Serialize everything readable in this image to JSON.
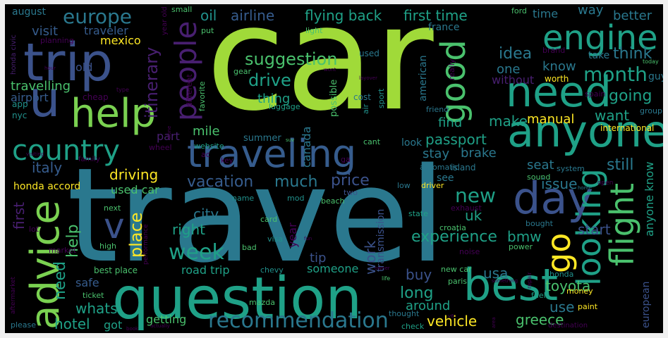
{
  "words": {
    "car": "car",
    "travel": "travel",
    "question": "question",
    "help": "help",
    "trip": "trip",
    "u": "u",
    "need": "need",
    "anyone": "anyone",
    "best": "best",
    "engine": "engine",
    "traveling": "traveling",
    "advice": "advice",
    "day": "day",
    "country": "country",
    "people": "people",
    "good": "good",
    "europe": "europe",
    "looking": "looking",
    "flight": "flight",
    "recommendation": "recommendation",
    "go": "go",
    "month": "month",
    "week": "week",
    "suggestion": "suggestion",
    "first_time": "first time",
    "flying_back": "flying back",
    "airline": "airline",
    "oil": "oil",
    "time": "time",
    "way": "way",
    "better": "better",
    "visit": "visit",
    "traveler": "traveler",
    "mexico": "mexico",
    "august": "august",
    "itinerary": "itinerary",
    "idea": "idea",
    "one": "one",
    "know": "know",
    "think": "think",
    "travelling": "travelling",
    "airport": "airport",
    "old": "old",
    "drive": "drive",
    "thing": "thing",
    "without": "without",
    "going": "going",
    "make": "make",
    "manual": "manual",
    "want": "want",
    "find": "find",
    "passport": "passport",
    "mile": "mile",
    "part": "part",
    "italy": "italy",
    "driving": "driving",
    "canada": "canada",
    "stay": "stay",
    "brake": "brake",
    "seat": "seat",
    "still": "still",
    "issue": "issue",
    "vacation": "vacation",
    "much": "much",
    "price": "price",
    "new": "new",
    "uk": "uk",
    "city": "city",
    "right": "right",
    "place": "place",
    "start": "start",
    "experience": "experience",
    "bmw": "bmw",
    "whats": "whats",
    "hotel": "hotel",
    "vehicle": "vehicle",
    "usa": "usa",
    "toyota": "toyota",
    "greece": "greece",
    "use": "use",
    "long": "long",
    "around": "around",
    "buy": "buy",
    "work": "work",
    "year": "year",
    "tip": "tip",
    "someone": "someone",
    "road_trip": "road trip",
    "getting": "getting",
    "got": "got",
    "safe": "safe",
    "need2": "need",
    "help2": "help",
    "first": "first",
    "v": "v",
    "used_car": "used car",
    "honda_accord": "honda accord",
    "summer": "summer",
    "website": "website",
    "look": "look",
    "see": "see",
    "island": "island",
    "transmission": "transmission",
    "european": "european",
    "anyone_know": "anyone know",
    "nyc": "nyc",
    "app": "app",
    "honda_civic": "honda civic",
    "planning": "planning",
    "luggage": "luggage",
    "cost": "cost",
    "sport": "sport",
    "air": "air",
    "france": "france",
    "american": "american",
    "friend": "friend",
    "really": "really",
    "international": "international",
    "guy": "guy",
    "spain": "spain",
    "group": "group",
    "worth": "worth",
    "small": "small",
    "put": "put",
    "light": "light",
    "gear": "gear",
    "ford": "ford",
    "brand": "brand",
    "take": "take",
    "today": "today",
    "cheap": "cheap",
    "different": "different",
    "favorite": "favorite",
    "possible": "possible",
    "used": "used",
    "family": "family",
    "key": "key",
    "wheel": "wheel",
    "ac": "ac",
    "ga": "ga",
    "cant": "cant",
    "suv": "suv",
    "automatic": "automatic",
    "driver": "driver",
    "low": "low",
    "sound": "sound",
    "system": "system",
    "open": "open",
    "home": "home",
    "name": "name",
    "mod": "mod",
    "two": "two",
    "beach": "beach",
    "exhaust": "exhaust",
    "card": "card",
    "state": "state",
    "visa": "visa",
    "bad": "bad",
    "fun": "fun",
    "bought": "bought",
    "croatia": "croatia",
    "noise": "noise",
    "power": "power",
    "chevy": "chevy",
    "mazda": "mazda",
    "paris": "paris",
    "new_car": "new car",
    "repair": "repair",
    "honda": "honda",
    "money": "money",
    "paint": "paint",
    "fuel": "fuel",
    "check": "check",
    "thought": "thought",
    "destination": "destination",
    "book": "book",
    "actually": "actually",
    "please": "please",
    "ticket": "ticket",
    "best_place": "best place",
    "market": "market",
    "lot": "lot",
    "high": "high",
    "next": "next",
    "performance": "performance",
    "aftermarket": "aftermarket",
    "type": "type",
    "hour": "hour",
    "alone": "alone",
    "layover": "layover",
    "wont": "wont",
    "owner": "owner",
    "life": "life",
    "something": "something",
    "area": "area",
    "v6": "v6",
    "visiting": "visiting",
    "year_old": "year old"
  }
}
